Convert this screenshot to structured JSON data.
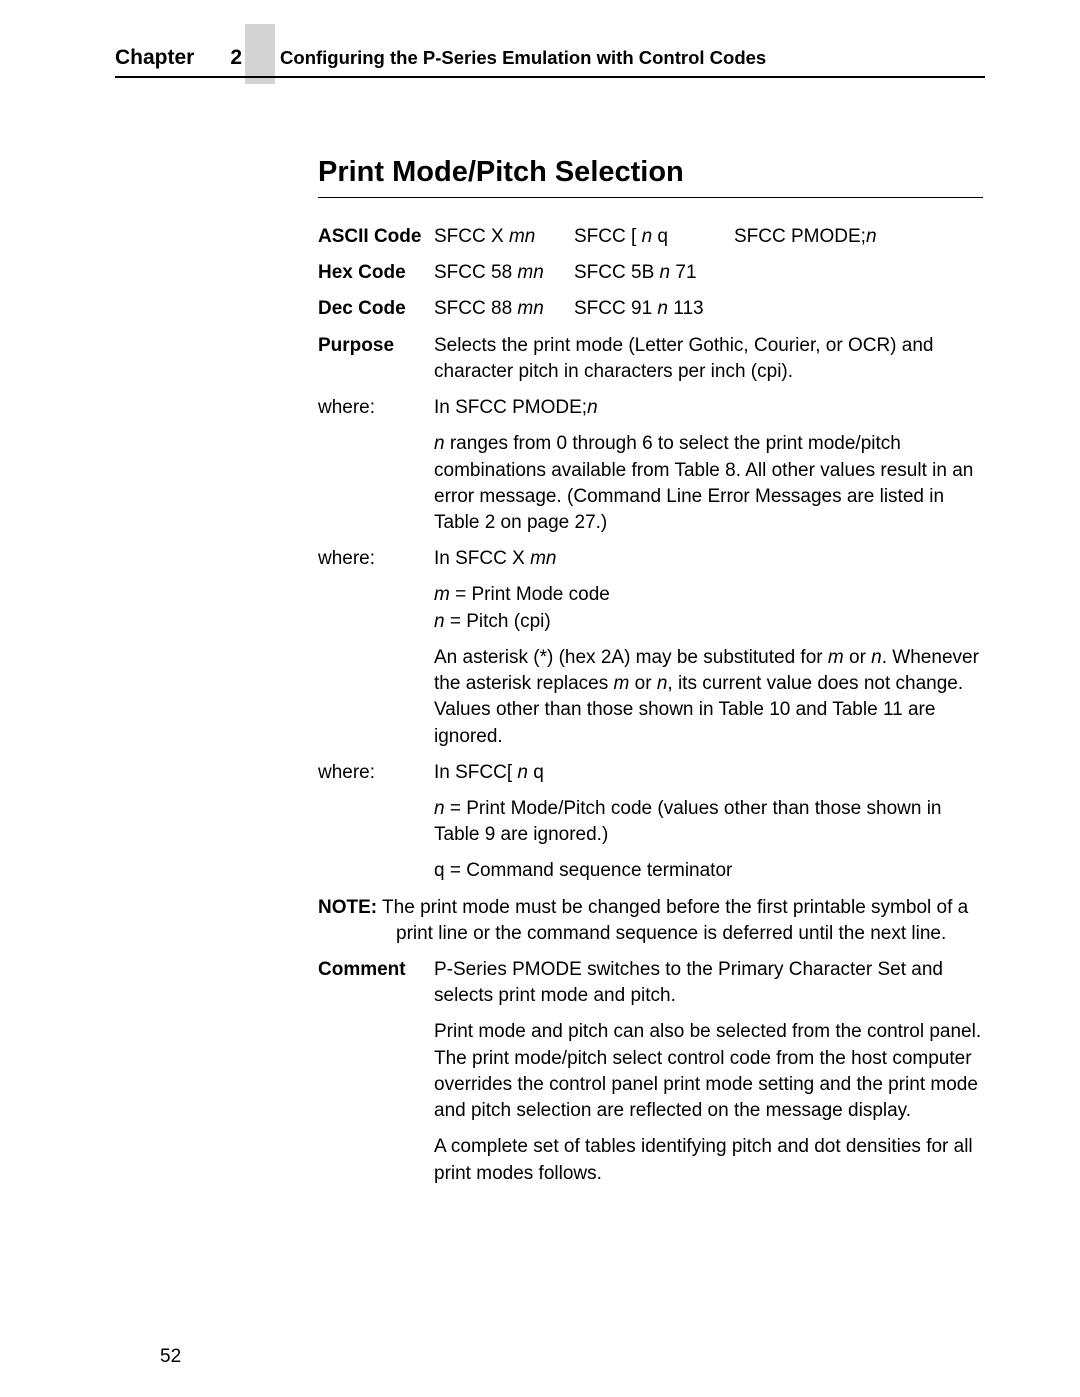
{
  "header": {
    "chapter_word": "Chapter",
    "chapter_num": "2",
    "chapter_title": "Configuring the P-Series Emulation with Control Codes"
  },
  "section_title": "Print Mode/Pitch Selection",
  "ascii": {
    "label": "ASCII Code",
    "c1a": "SFCC X ",
    "c1b": "mn",
    "c2a": "SFCC [ ",
    "c2b": "n ",
    "c2c": "q",
    "c3a": "SFCC PMODE;",
    "c3b": "n"
  },
  "hex": {
    "label": "Hex Code",
    "c1a": "SFCC 58 ",
    "c1b": "mn",
    "c2a": "SFCC 5B ",
    "c2b": "n ",
    "c2c": "71"
  },
  "dec": {
    "label": "Dec Code",
    "c1a": "SFCC 88 ",
    "c1b": "mn",
    "c2a": "SFCC 91 ",
    "c2b": "n ",
    "c2c": "113"
  },
  "purpose": {
    "label": "Purpose",
    "text": "Selects the print mode (Letter Gothic, Courier, or OCR) and character pitch in characters per inch (cpi)."
  },
  "where1": {
    "label": "where:",
    "l1a": "In SFCC PMODE;",
    "l1b": "n",
    "p2a": "n",
    "p2b": " ranges from 0 through 6 to select the print mode/pitch combinations available from Table 8. All other values result in an error message. (Command Line Error Messages are listed in Table 2 on page 27.)"
  },
  "where2": {
    "label": "where:",
    "l1a": "In SFCC X ",
    "l1b": "mn",
    "p2a": "m",
    "p2b": " = Print Mode code",
    "p3a": "n",
    "p3b": " = Pitch (cpi)",
    "p4a": "An asterisk (*) (hex 2A) may be substituted for ",
    "p4b": "m",
    "p4c": " or ",
    "p4d": "n",
    "p4e": ". Whenever the asterisk replaces ",
    "p4f": "m",
    "p4g": " or ",
    "p4h": "n",
    "p4i": ", its current value does not change. Values other than those shown in Table 10 and Table 11 are ignored."
  },
  "where3": {
    "label": "where:",
    "l1a": "In SFCC[ ",
    "l1b": "n ",
    "l1c": "q",
    "p2a": "n",
    "p2b": " = Print Mode/Pitch code (values other than those shown in Table 9 are ignored.)",
    "p3": "q = Command sequence terminator"
  },
  "note": {
    "label": "NOTE:",
    "text": "The print mode must be changed before the first printable symbol of a print line or the command sequence is deferred until the next line."
  },
  "comment": {
    "label": "Comment",
    "p1": "P-Series PMODE switches to the Primary Character Set and selects print mode and pitch.",
    "p2": "Print mode and pitch can also be selected from the control panel. The print mode/pitch select control code from the host computer overrides the control panel print mode setting and the print mode and pitch selection are reflected on the message display.",
    "p3": "A complete set of tables identifying pitch and dot densities for all print modes follows."
  },
  "page_number": "52"
}
